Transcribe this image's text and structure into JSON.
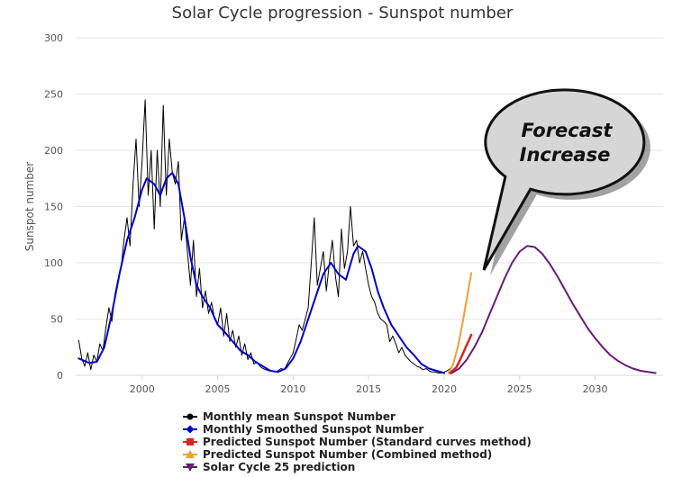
{
  "chart_data": {
    "type": "line",
    "title": "Solar Cycle progression - Sunspot number",
    "ylabel": "Sunspot number",
    "xlabel": "",
    "xlim": [
      1995.6,
      2034.5
    ],
    "ylim": [
      0,
      300
    ],
    "x_ticks": [
      2000,
      2005,
      2010,
      2015,
      2020,
      2025,
      2030
    ],
    "y_ticks": [
      0,
      50,
      100,
      150,
      200,
      250,
      300
    ],
    "grid": true,
    "legend_position": "bottom",
    "series": [
      {
        "name": "Monthly mean Sunspot Number",
        "color": "#000000",
        "marker": "circle",
        "x": [
          1995.8,
          1996.0,
          1996.2,
          1996.4,
          1996.6,
          1996.8,
          1997.0,
          1997.2,
          1997.4,
          1997.6,
          1997.8,
          1998.0,
          1998.2,
          1998.4,
          1998.6,
          1998.8,
          1999.0,
          1999.2,
          1999.4,
          1999.6,
          1999.8,
          2000.0,
          2000.2,
          2000.4,
          2000.6,
          2000.8,
          2001.0,
          2001.2,
          2001.4,
          2001.6,
          2001.8,
          2002.0,
          2002.2,
          2002.4,
          2002.6,
          2002.8,
          2003.0,
          2003.2,
          2003.4,
          2003.6,
          2003.8,
          2004.0,
          2004.2,
          2004.4,
          2004.6,
          2004.8,
          2005.0,
          2005.2,
          2005.4,
          2005.6,
          2005.8,
          2006.0,
          2006.2,
          2006.4,
          2006.6,
          2006.8,
          2007.0,
          2007.2,
          2007.4,
          2007.6,
          2007.8,
          2008.0,
          2008.2,
          2008.4,
          2008.6,
          2008.8,
          2009.0,
          2009.2,
          2009.4,
          2009.6,
          2009.8,
          2010.0,
          2010.2,
          2010.4,
          2010.6,
          2010.8,
          2011.0,
          2011.2,
          2011.4,
          2011.6,
          2011.8,
          2012.0,
          2012.2,
          2012.4,
          2012.6,
          2012.8,
          2013.0,
          2013.2,
          2013.4,
          2013.6,
          2013.8,
          2014.0,
          2014.2,
          2014.4,
          2014.6,
          2014.8,
          2015.0,
          2015.2,
          2015.4,
          2015.6,
          2015.8,
          2016.0,
          2016.2,
          2016.4,
          2016.6,
          2016.8,
          2017.0,
          2017.2,
          2017.4,
          2017.6,
          2017.8,
          2018.0,
          2018.2,
          2018.4,
          2018.6,
          2018.8,
          2019.0,
          2019.2,
          2019.4,
          2019.6,
          2019.8,
          2020.0,
          2020.2,
          2020.4
        ],
        "y": [
          31,
          15,
          8,
          20,
          5,
          18,
          12,
          28,
          22,
          42,
          60,
          48,
          72,
          85,
          95,
          120,
          140,
          115,
          170,
          210,
          150,
          190,
          245,
          160,
          200,
          130,
          200,
          150,
          240,
          160,
          210,
          180,
          170,
          190,
          120,
          140,
          110,
          80,
          120,
          70,
          95,
          60,
          75,
          55,
          65,
          50,
          45,
          60,
          35,
          55,
          30,
          40,
          25,
          35,
          18,
          28,
          14,
          20,
          10,
          12,
          8,
          6,
          5,
          4,
          4,
          3,
          4,
          6,
          5,
          10,
          15,
          20,
          32,
          45,
          40,
          50,
          60,
          100,
          140,
          80,
          95,
          110,
          75,
          100,
          120,
          88,
          70,
          130,
          95,
          110,
          150,
          115,
          120,
          100,
          110,
          95,
          80,
          70,
          65,
          55,
          50,
          48,
          45,
          30,
          35,
          28,
          20,
          25,
          18,
          15,
          12,
          10,
          8,
          7,
          5,
          6,
          4,
          3,
          3,
          2,
          2,
          3,
          4,
          6
        ]
      },
      {
        "name": "Monthly Smoothed Sunspot Number",
        "color": "#0000cc",
        "marker": "diamond",
        "x": [
          1995.8,
          1996.5,
          1997.0,
          1997.5,
          1998.0,
          1998.5,
          1999.0,
          1999.5,
          2000.0,
          2000.3,
          2000.8,
          2001.2,
          2001.6,
          2002.0,
          2002.4,
          2002.8,
          2003.2,
          2003.6,
          2004.0,
          2004.5,
          2005.0,
          2005.5,
          2006.0,
          2006.5,
          2007.0,
          2007.5,
          2008.0,
          2008.5,
          2009.0,
          2009.5,
          2010.0,
          2010.5,
          2011.0,
          2011.5,
          2012.0,
          2012.5,
          2013.0,
          2013.5,
          2014.0,
          2014.3,
          2014.8,
          2015.2,
          2015.6,
          2016.0,
          2016.5,
          2017.0,
          2017.5,
          2018.0,
          2018.5,
          2019.0,
          2019.5,
          2020.0
        ],
        "y": [
          15,
          11,
          12,
          25,
          55,
          90,
          120,
          140,
          165,
          175,
          170,
          160,
          175,
          180,
          170,
          140,
          105,
          80,
          70,
          60,
          45,
          38,
          30,
          22,
          18,
          12,
          8,
          4,
          3,
          6,
          15,
          30,
          50,
          70,
          90,
          100,
          90,
          85,
          108,
          115,
          110,
          95,
          75,
          60,
          45,
          35,
          25,
          18,
          10,
          6,
          4,
          2
        ]
      },
      {
        "name": "Predicted Sunspot Number (Standard curves method)",
        "color": "#dd2222",
        "marker": "square",
        "x": [
          2020.4,
          2020.8,
          2021.0,
          2021.2,
          2021.4,
          2021.6,
          2021.8
        ],
        "y": [
          2,
          7,
          12,
          18,
          24,
          30,
          36
        ]
      },
      {
        "name": "Predicted Sunspot Number (Combined method)",
        "color": "#f0a030",
        "marker": "triangle",
        "x": [
          2020.3,
          2020.6,
          2020.9,
          2021.2,
          2021.5,
          2021.8
        ],
        "y": [
          2,
          10,
          25,
          45,
          68,
          91
        ]
      },
      {
        "name": "Solar Cycle 25 prediction",
        "color": "#6a1a78",
        "marker": "triangle-down",
        "x": [
          2020.5,
          2021.0,
          2021.5,
          2022.0,
          2022.5,
          2023.0,
          2023.5,
          2024.0,
          2024.5,
          2025.0,
          2025.5,
          2026.0,
          2026.5,
          2027.0,
          2027.5,
          2028.0,
          2028.5,
          2029.0,
          2029.5,
          2030.0,
          2030.5,
          2031.0,
          2031.5,
          2032.0,
          2032.5,
          2033.0,
          2033.5,
          2034.0
        ],
        "y": [
          2,
          6,
          14,
          25,
          38,
          54,
          70,
          86,
          100,
          110,
          115,
          114,
          108,
          99,
          88,
          76,
          64,
          53,
          42,
          33,
          25,
          18,
          13,
          9,
          6,
          4,
          3,
          2
        ]
      }
    ],
    "annotation": {
      "lines": [
        "Forecast",
        "Increase"
      ]
    }
  }
}
